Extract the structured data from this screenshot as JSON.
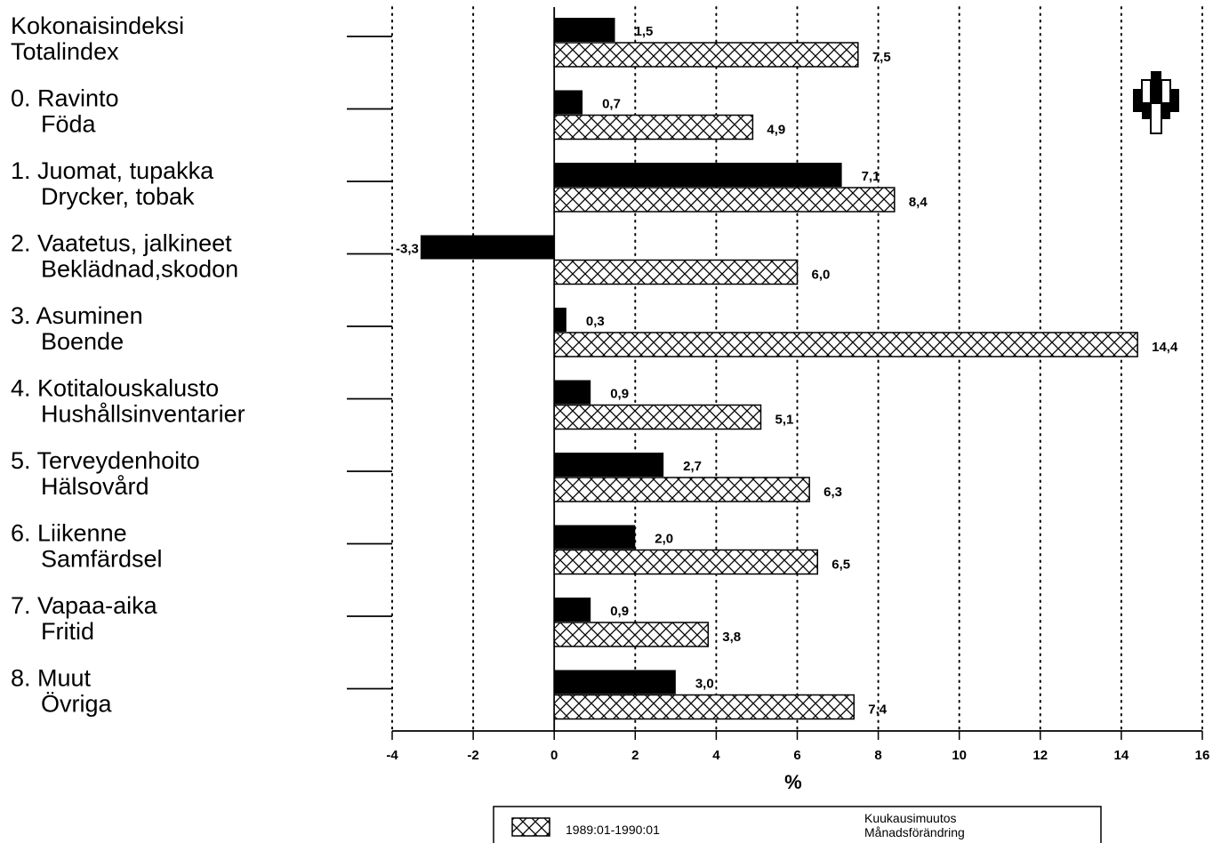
{
  "chart_data": {
    "type": "bar",
    "orientation": "horizontal",
    "categories": [
      [
        "Kokonaisindeksi",
        "Totalindex"
      ],
      [
        "0. Ravinto",
        "Föda"
      ],
      [
        "1. Juomat, tupakka",
        "Drycker, tobak"
      ],
      [
        "2. Vaatetus, jalkineet",
        "Beklädnad,skodon"
      ],
      [
        "3. Asuminen",
        "Boende"
      ],
      [
        "4. Kotitalouskalusto",
        "Hushållsinventarier"
      ],
      [
        "5. Terveydenhoito",
        "Hälsovård"
      ],
      [
        "6. Liikenne",
        "Samfärdsel"
      ],
      [
        "7. Vapaa-aika",
        "Fritid"
      ],
      [
        "8. Muut",
        "Övriga"
      ]
    ],
    "series": [
      {
        "key": "monthly",
        "fill": "solid-black",
        "values": [
          1.5,
          0.7,
          7.1,
          -3.3,
          0.3,
          0.9,
          2.7,
          2.0,
          0.9,
          3.0
        ],
        "labels": [
          "1,5",
          "0,7",
          "7,1",
          "-3,3",
          "0,3",
          "0,9",
          "2,7",
          "2,0",
          "0,9",
          "3,0"
        ]
      },
      {
        "key": "annual",
        "name": "1989:01-1990:01",
        "fill": "crosshatch",
        "values": [
          7.5,
          4.9,
          8.4,
          6.0,
          14.4,
          5.1,
          6.3,
          6.5,
          3.8,
          7.4
        ],
        "labels": [
          "7,5",
          "4,9",
          "8,4",
          "6,0",
          "14,4",
          "5,1",
          "6,3",
          "6,5",
          "3,8",
          "7,4"
        ]
      }
    ],
    "xlim": [
      -4,
      16
    ],
    "xticks": [
      -4,
      -2,
      0,
      2,
      4,
      6,
      8,
      10,
      12,
      14,
      16
    ],
    "xlabel": "%",
    "ylabel": "",
    "title": "",
    "grid": "vertical dotted",
    "legend": {
      "position": "bottom-center",
      "entries": [
        {
          "swatch": "crosshatch",
          "label": "1989:01-1990:01"
        }
      ],
      "note_lines": [
        "Kuukausimuutos",
        "Månadsförändring"
      ]
    }
  }
}
